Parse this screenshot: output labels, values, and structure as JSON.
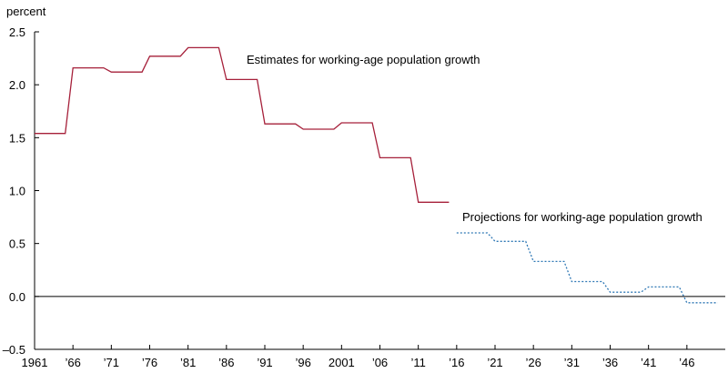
{
  "chart_data": {
    "type": "line",
    "ylabel": "percent",
    "ylim": [
      -0.5,
      2.5
    ],
    "yticks": [
      "2.5",
      "2.0",
      "1.5",
      "1.0",
      "0.5",
      "0.0",
      "–0.5"
    ],
    "ytick_values": [
      2.5,
      2.0,
      1.5,
      1.0,
      0.5,
      0.0,
      -0.5
    ],
    "xlim": [
      1961,
      2051
    ],
    "xticks": [
      "1961",
      "’66",
      "’71",
      "’76",
      "’81",
      "’86",
      "’91",
      "’96",
      "2001",
      "’06",
      "’11",
      "’16",
      "’21",
      "’26",
      "’31",
      "’36",
      "’41",
      "’46"
    ],
    "xtick_values": [
      1961,
      1966,
      1971,
      1976,
      1981,
      1986,
      1991,
      1996,
      2001,
      2006,
      2011,
      2016,
      2021,
      2026,
      2031,
      2036,
      2041,
      2046
    ],
    "series": [
      {
        "color": "#a6203a",
        "style": "solid",
        "steps": [
          {
            "start": 1961,
            "end": 1965,
            "value": 1.54
          },
          {
            "start": 1966,
            "end": 1970,
            "value": 2.16
          },
          {
            "start": 1971,
            "end": 1975,
            "value": 2.12
          },
          {
            "start": 1976,
            "end": 1980,
            "value": 2.27
          },
          {
            "start": 1981,
            "end": 1985,
            "value": 2.35
          },
          {
            "start": 1986,
            "end": 1990,
            "value": 2.05
          },
          {
            "start": 1991,
            "end": 1995,
            "value": 1.63
          },
          {
            "start": 1996,
            "end": 2000,
            "value": 1.58
          },
          {
            "start": 2001,
            "end": 2005,
            "value": 1.64
          },
          {
            "start": 2006,
            "end": 2010,
            "value": 1.31
          },
          {
            "start": 2011,
            "end": 2015,
            "value": 0.89
          }
        ]
      },
      {
        "color": "#2f78b5",
        "style": "dotted",
        "steps": [
          {
            "start": 2016,
            "end": 2020,
            "value": 0.6
          },
          {
            "start": 2021,
            "end": 2025,
            "value": 0.52
          },
          {
            "start": 2026,
            "end": 2030,
            "value": 0.33
          },
          {
            "start": 2031,
            "end": 2035,
            "value": 0.14
          },
          {
            "start": 2036,
            "end": 2040,
            "value": 0.04
          },
          {
            "start": 2041,
            "end": 2045,
            "value": 0.09
          },
          {
            "start": 2046,
            "end": 2050,
            "value": -0.06
          }
        ]
      }
    ],
    "annotations": [
      {
        "text": "Estimates for working-age population growth",
        "series": 0
      },
      {
        "text": "Projections for working-age population growth",
        "series": 1
      }
    ],
    "zero_line": true,
    "grid": false
  }
}
